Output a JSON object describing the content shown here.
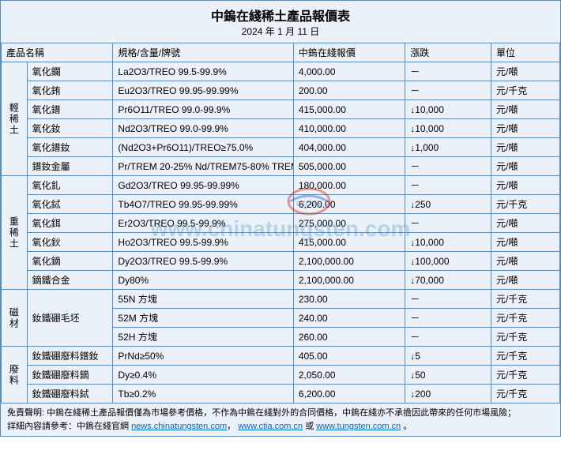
{
  "title": "中鎢在綫稀土產品報價表",
  "date": "2024 年 1 月 11 日",
  "headers": {
    "name": "產品名稱",
    "spec": "規格/含量/牌號",
    "price": "中鎢在綫報價",
    "change": "漲跌",
    "unit": "單位"
  },
  "categories": [
    {
      "label": "輕稀土",
      "rows": [
        {
          "name": "氧化鑭",
          "spec": "La2O3/TREO 99.5-99.9%",
          "price": "4,000.00",
          "change": "－",
          "unit": "元/噸"
        },
        {
          "name": "氧化銪",
          "spec": "Eu2O3/TREO 99.95-99.99%",
          "price": "200.00",
          "change": "－",
          "unit": "元/千克"
        },
        {
          "name": "氧化鐠",
          "spec": "Pr6O11/TREO 99.0-99.9%",
          "price": "415,000.00",
          "change": "↓10,000",
          "unit": "元/噸"
        },
        {
          "name": "氧化釹",
          "spec": "Nd2O3/TREO 99.0-99.9%",
          "price": "410,000.00",
          "change": "↓10,000",
          "unit": "元/噸"
        },
        {
          "name": "氧化鐠釹",
          "spec": "(Nd2O3+Pr6O11)/TREO≥75.0%",
          "price": "404,000.00",
          "change": "↓1,000",
          "unit": "元/噸"
        },
        {
          "name": "鐠釹金屬",
          "spec": "Pr/TREM 20-25% Nd/TREM75-80% TREM≥98.5%",
          "price": "505,000.00",
          "change": "－",
          "unit": "元/噸"
        }
      ]
    },
    {
      "label": "重稀土",
      "rows": [
        {
          "name": "氧化釓",
          "spec": "Gd2O3/TREO 99.95-99.99%",
          "price": "180,000.00",
          "change": "－",
          "unit": "元/噸"
        },
        {
          "name": "氧化鋱",
          "spec": "Tb4O7/TREO 99.95-99.99%",
          "price": "6,200.00",
          "change": "↓250",
          "unit": "元/千克"
        },
        {
          "name": "氧化鉺",
          "spec": "Er2O3/TREO 99.5-99.9%",
          "price": "275,000.00",
          "change": "－",
          "unit": "元/噸"
        },
        {
          "name": "氧化鈥",
          "spec": "Ho2O3/TREO 99.5-99.9%",
          "price": "415,000.00",
          "change": "↓10,000",
          "unit": "元/噸"
        },
        {
          "name": "氧化鏑",
          "spec": "Dy2O3/TREO 99.5-99.9%",
          "price": "2,100,000.00",
          "change": "↓100,000",
          "unit": "元/噸"
        },
        {
          "name": "鏑鐵合金",
          "spec": "Dy80%",
          "price": "2,100,000.00",
          "change": "↓70,000",
          "unit": "元/噸"
        }
      ]
    },
    {
      "label": "磁材",
      "rows": [
        {
          "name": "釹鐵硼毛坯",
          "spec": "55N 方塊",
          "price": "230.00",
          "change": "－",
          "unit": "元/千克",
          "nspan": 3
        },
        {
          "name": "",
          "spec": "52M 方塊",
          "price": "240.00",
          "change": "－",
          "unit": "元/千克"
        },
        {
          "name": "",
          "spec": "52H 方塊",
          "price": "260.00",
          "change": "－",
          "unit": "元/千克"
        }
      ]
    },
    {
      "label": "廢料",
      "rows": [
        {
          "name": "釹鐵硼廢料鐠釹",
          "spec": "PrNd≥50%",
          "price": "405.00",
          "change": "↓5",
          "unit": "元/千克"
        },
        {
          "name": "釹鐵硼廢料鏑",
          "spec": "Dy≥0.4%",
          "price": "2,050.00",
          "change": "↓50",
          "unit": "元/千克"
        },
        {
          "name": "釹鐵硼廢料鋱",
          "spec": "Tb≥0.2%",
          "price": "6,200.00",
          "change": "↓200",
          "unit": "元/千克"
        }
      ]
    }
  ],
  "footer": {
    "disclaimer_label": "免責聲明:",
    "disclaimer_text": "中鎢在綫稀土產品報價僅為市場參考價格，不作為中鎢在綫對外的合同價格，中鎢在綫亦不承擔因此帶來的任何市場風險；",
    "detail_label": "詳細內容請參考：中鎢在綫官網",
    "link1": "news.chinatungsten.com",
    "link2": "www.ctia.com.cn",
    "or": " 或 ",
    "link3": "www.tungsten.com.cn",
    "period": "。"
  },
  "watermark": "www.chinatungsten.com",
  "colors": {
    "border": "#5b8cb8",
    "bg": "#eaf1f8",
    "link": "#0066cc",
    "wm": "rgba(88,150,200,0.35)"
  }
}
